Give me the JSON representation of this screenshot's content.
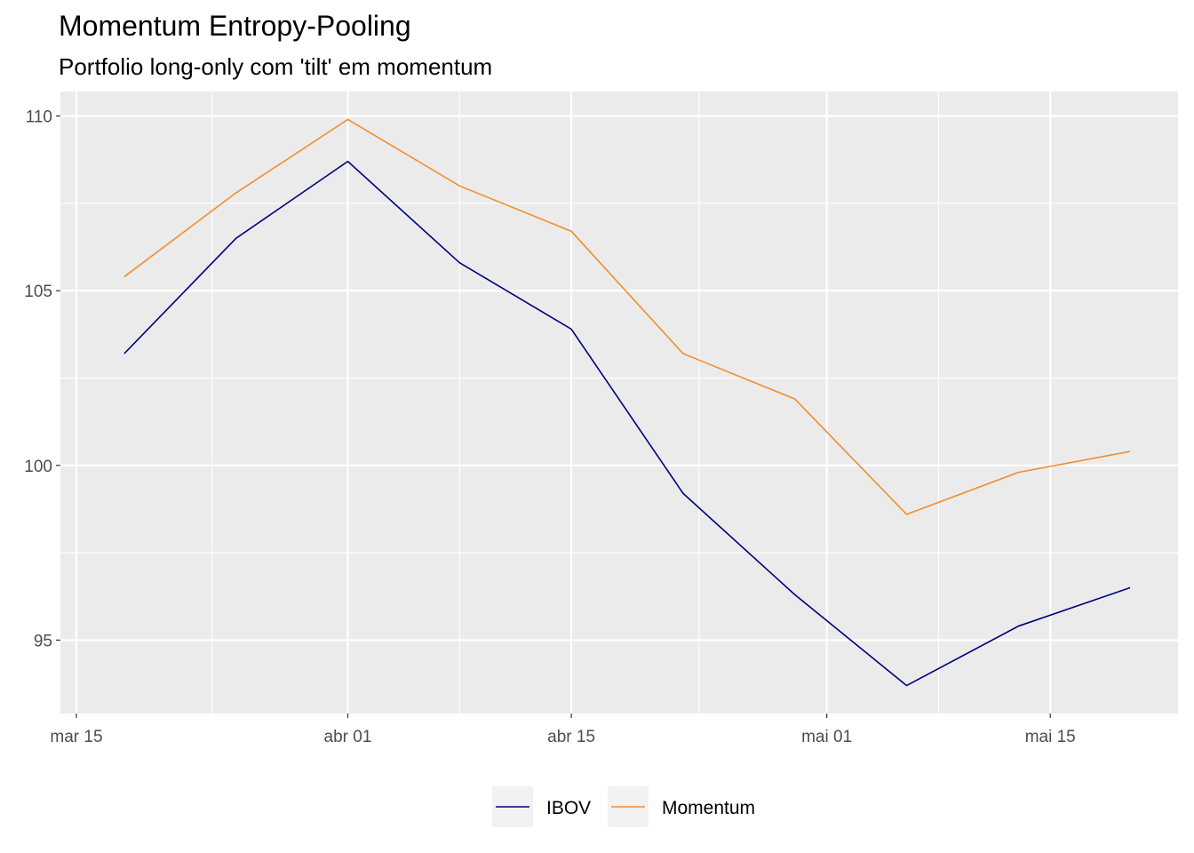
{
  "chart_data": {
    "type": "line",
    "title": "Momentum Entropy-Pooling",
    "subtitle": "Portfolio long-only com 'tilt' em momentum",
    "x": [
      "2024-03-18",
      "2024-03-25",
      "2024-04-01",
      "2024-04-08",
      "2024-04-15",
      "2024-04-22",
      "2024-04-29",
      "2024-05-06",
      "2024-05-13",
      "2024-05-20"
    ],
    "series": [
      {
        "name": "IBOV",
        "color": "#00007f",
        "values": [
          103.2,
          106.5,
          108.7,
          105.8,
          103.9,
          99.2,
          96.3,
          93.7,
          95.4,
          96.5
        ]
      },
      {
        "name": "Momentum",
        "color": "#f28e2b",
        "values": [
          105.4,
          107.8,
          109.9,
          108.0,
          106.7,
          103.2,
          101.9,
          98.6,
          99.8,
          100.4
        ]
      }
    ],
    "x_ticks": [
      {
        "date": "2024-03-15",
        "label": "mar 15"
      },
      {
        "date": "2024-04-01",
        "label": "abr 01"
      },
      {
        "date": "2024-04-15",
        "label": "abr 15"
      },
      {
        "date": "2024-05-01",
        "label": "mai 01"
      },
      {
        "date": "2024-05-15",
        "label": "mai 15"
      }
    ],
    "y_ticks": [
      95,
      100,
      105,
      110
    ],
    "ylim": [
      92.9,
      110.7
    ],
    "xlim": [
      "2024-03-14",
      "2024-05-23"
    ],
    "xlabel": "",
    "ylabel": "",
    "grid": true,
    "legend_position": "bottom",
    "panel_color": "#ebebeb",
    "grid_color": "#ffffff"
  }
}
